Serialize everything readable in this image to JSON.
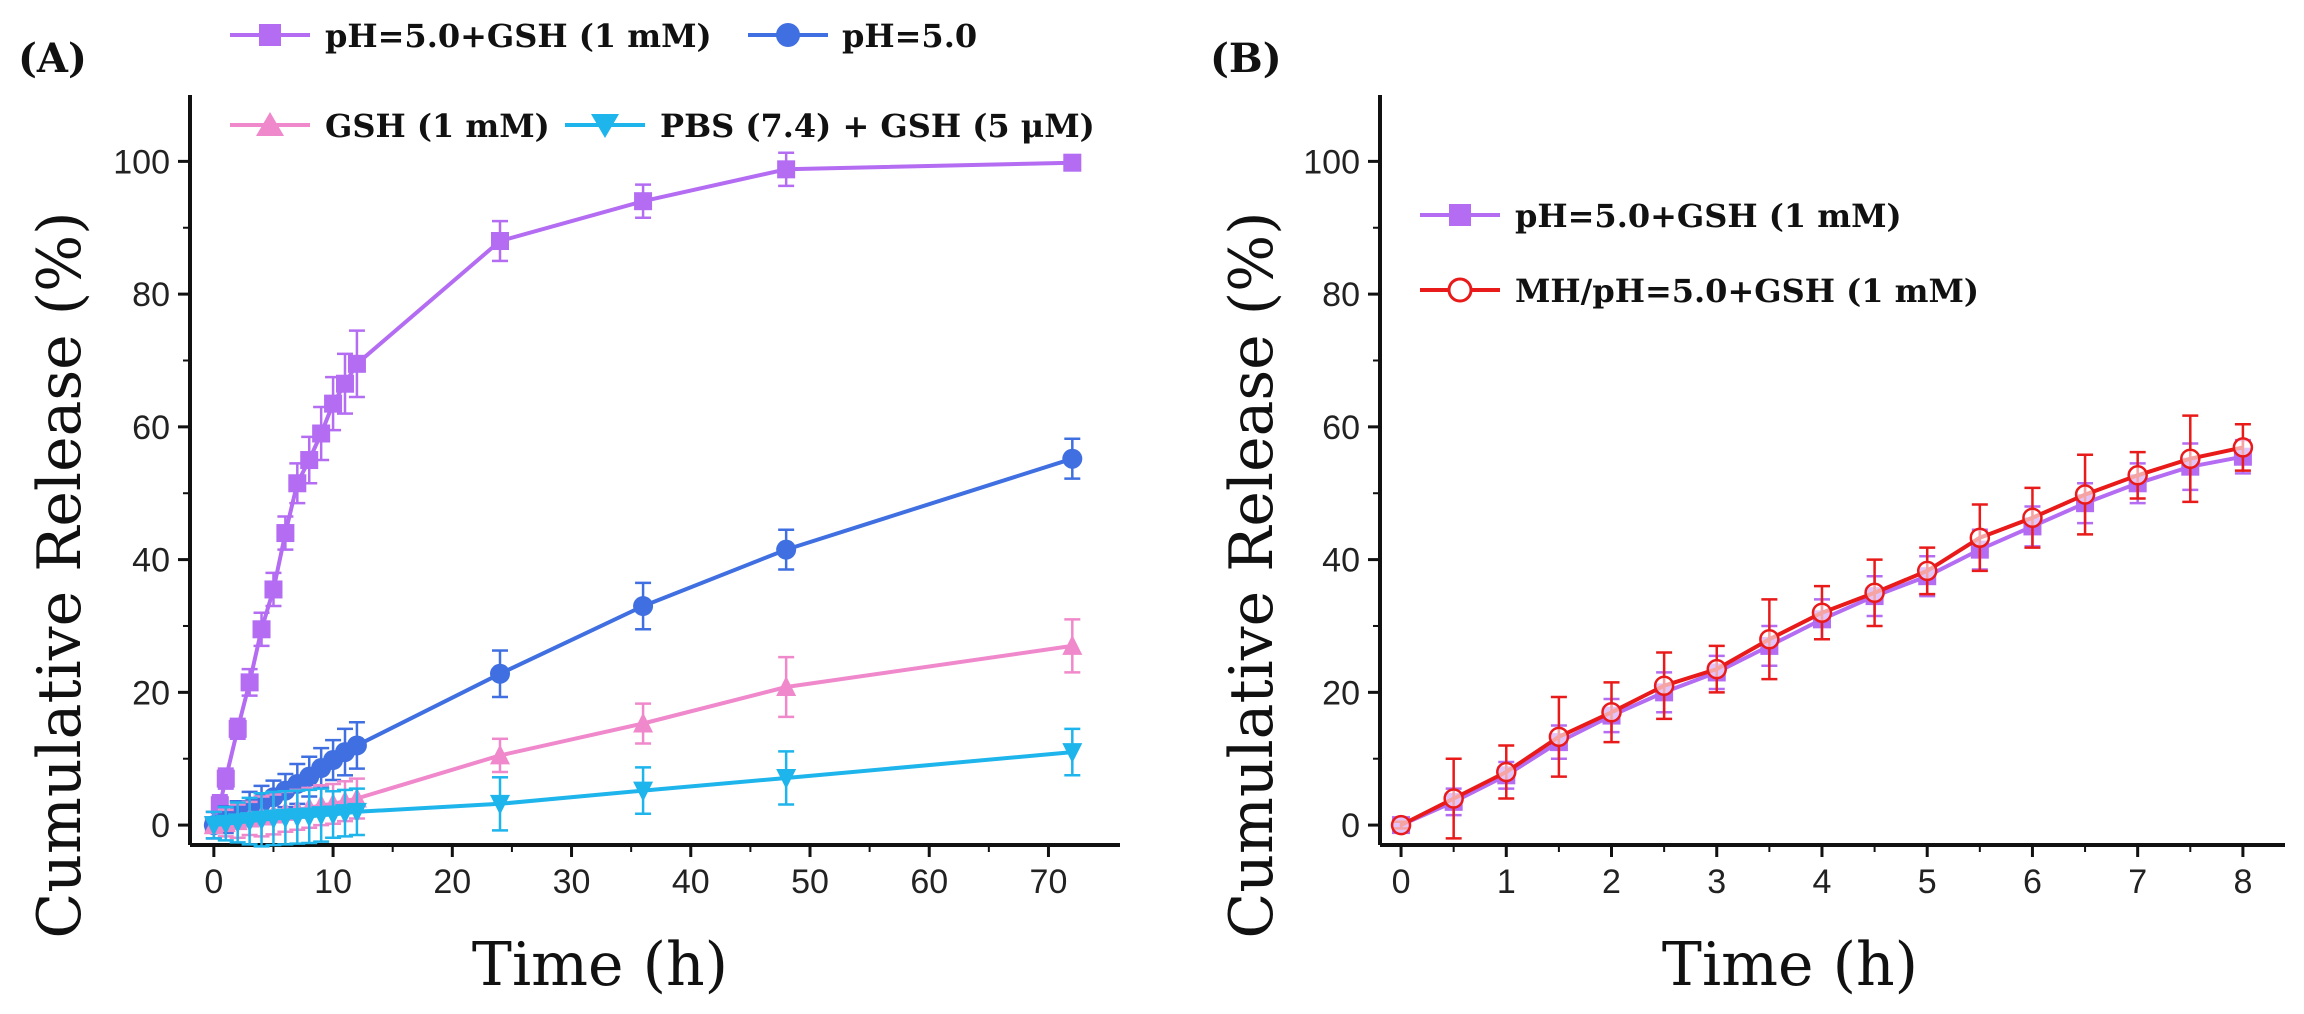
{
  "figure": {
    "panels": [
      "(A)",
      "(B)"
    ]
  },
  "chart_data": [
    {
      "type": "line",
      "panel_label": "(A)",
      "xlabel": "Time (h)",
      "ylabel": "Cumulative Release (%)",
      "xlim": [
        -2,
        76
      ],
      "ylim": [
        -3,
        110
      ],
      "xticks": [
        0,
        10,
        20,
        30,
        40,
        50,
        60,
        70
      ],
      "yticks": [
        0,
        20,
        40,
        60,
        80,
        100
      ],
      "legend_position": "top",
      "series": [
        {
          "name": "pH=5.0+GSH (1 mM)",
          "color": "#b36cf2",
          "marker": "square",
          "x": [
            0,
            0.5,
            1,
            2,
            3,
            4,
            5,
            6,
            7,
            8,
            9,
            10,
            11,
            12,
            24,
            36,
            48,
            72
          ],
          "y": [
            0,
            3,
            7,
            14.5,
            21.5,
            29.5,
            35.5,
            44,
            51.5,
            55,
            59,
            63.5,
            66.5,
            69.5,
            88,
            94,
            98.8,
            99.8
          ],
          "err": [
            1,
            1.5,
            1.5,
            1.5,
            2,
            2.5,
            2.5,
            2.5,
            3,
            3.5,
            4,
            4,
            4.5,
            5,
            3,
            2.5,
            2.5,
            1
          ]
        },
        {
          "name": "pH=5.0",
          "color": "#3f6fe0",
          "marker": "circle",
          "x": [
            0,
            1,
            2,
            3,
            4,
            5,
            6,
            7,
            8,
            9,
            10,
            11,
            12,
            24,
            36,
            48,
            72
          ],
          "y": [
            0,
            0.8,
            1.6,
            2.5,
            3.4,
            4.2,
            5.2,
            6.2,
            7.3,
            8.6,
            9.8,
            11,
            12,
            22.8,
            33,
            41.5,
            55.2
          ],
          "err": [
            2,
            2,
            2,
            2.5,
            2.5,
            2.5,
            2.5,
            3,
            3,
            3,
            3,
            3.5,
            3.5,
            3.5,
            3.5,
            3,
            3
          ]
        },
        {
          "name": "GSH (1 mM)",
          "color": "#f088cc",
          "marker": "triangle-up",
          "x": [
            0,
            1,
            2,
            3,
            4,
            5,
            6,
            7,
            8,
            9,
            10,
            11,
            12,
            24,
            36,
            48,
            72
          ],
          "y": [
            0,
            0.3,
            0.6,
            1,
            1.3,
            1.6,
            2,
            2.3,
            2.6,
            3,
            3.2,
            3.6,
            4,
            10.5,
            15.3,
            20.8,
            27
          ],
          "err": [
            2,
            2,
            2.5,
            2.5,
            3,
            3,
            3,
            3,
            3,
            3,
            3,
            3,
            3,
            2.5,
            3,
            4.5,
            4
          ]
        },
        {
          "name": "PBS (7.4) + GSH (5 μM)",
          "color": "#1eb4ec",
          "marker": "triangle-down",
          "x": [
            0,
            1,
            2,
            3,
            4,
            5,
            6,
            7,
            8,
            9,
            10,
            11,
            12,
            24,
            36,
            48,
            72
          ],
          "y": [
            0,
            0.2,
            0.4,
            0.6,
            0.8,
            1,
            1.1,
            1.2,
            1.3,
            1.5,
            1.6,
            1.8,
            2,
            3.2,
            5.2,
            7.1,
            11
          ],
          "err": [
            2,
            2.5,
            3,
            3.5,
            4,
            4,
            4,
            4,
            4,
            4,
            3.5,
            3.5,
            3.5,
            4,
            3.5,
            4,
            3.5
          ]
        }
      ]
    },
    {
      "type": "line",
      "panel_label": "(B)",
      "xlabel": "Time (h)",
      "ylabel": "Cumulative Release (%)",
      "xlim": [
        -0.2,
        8.4
      ],
      "ylim": [
        -3,
        110
      ],
      "xticks": [
        0,
        1,
        2,
        3,
        4,
        5,
        6,
        7,
        8
      ],
      "yticks": [
        0,
        20,
        40,
        60,
        80,
        100
      ],
      "legend_position": "top-left",
      "series": [
        {
          "name": "pH=5.0+GSH (1 mM)",
          "color": "#b36cf2",
          "marker": "square",
          "x": [
            0,
            0.5,
            1,
            1.5,
            2,
            2.5,
            3,
            3.5,
            4,
            4.5,
            5,
            5.5,
            6,
            6.5,
            7,
            7.5,
            8
          ],
          "y": [
            0,
            3.5,
            7.5,
            12.5,
            16.5,
            20,
            23,
            27,
            31,
            34.5,
            37.5,
            41.5,
            45,
            48.5,
            51.5,
            54,
            55.5
          ],
          "err": [
            0.5,
            2,
            2,
            2.5,
            2.5,
            3,
            2.5,
            3,
            3,
            3,
            3,
            3,
            3,
            3,
            3,
            3.5,
            2.5
          ]
        },
        {
          "name": "MH/pH=5.0+GSH (1 mM)",
          "color": "#e81a1a",
          "marker": "circle-open",
          "x": [
            0,
            0.5,
            1,
            1.5,
            2,
            2.5,
            3,
            3.5,
            4,
            4.5,
            5,
            5.5,
            6,
            6.5,
            7,
            7.5,
            8
          ],
          "y": [
            0,
            4,
            8,
            13.3,
            17,
            21,
            23.5,
            28,
            32,
            35,
            38.3,
            43.3,
            46.3,
            49.8,
            52.7,
            55.2,
            56.9
          ],
          "err": [
            0.5,
            6,
            4,
            6,
            4.5,
            5,
            3.5,
            6,
            4,
            5,
            3.5,
            5,
            4.5,
            6,
            3.5,
            6.5,
            3.5
          ]
        }
      ]
    }
  ]
}
